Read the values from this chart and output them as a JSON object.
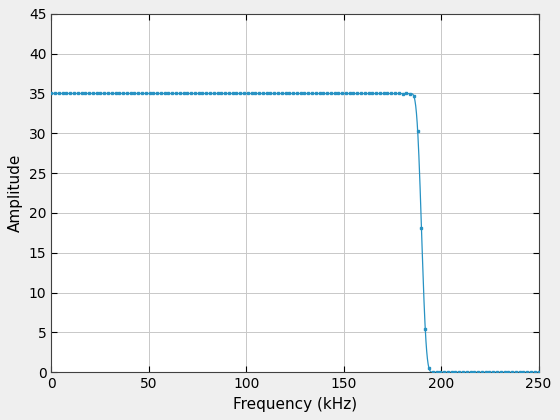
{
  "xlabel": "Frequency (kHz)",
  "ylabel": "Amplitude",
  "xlim": [
    0,
    250
  ],
  "ylim": [
    0,
    45
  ],
  "xticks": [
    0,
    50,
    100,
    150,
    200,
    250
  ],
  "yticks": [
    0,
    5,
    10,
    15,
    20,
    25,
    30,
    35,
    40,
    45
  ],
  "line_color": "#2792c3",
  "marker": "s",
  "markersize": 2.0,
  "linewidth": 0.9,
  "grid_color": "#c8c8c8",
  "background_color": "#ffffff",
  "fig_bg_color": "#efefef"
}
